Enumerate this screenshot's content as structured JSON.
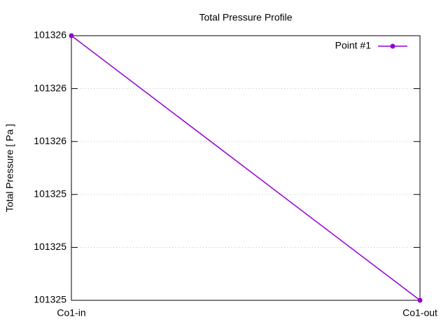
{
  "chart_data": {
    "type": "line",
    "title": "Total Pressure Profile",
    "ylabel": "Total Pressure [ Pa ]",
    "categories": [
      "Co1-in",
      "Co1-out"
    ],
    "series": [
      {
        "name": "Point #1",
        "color": "#9400d3",
        "values": [
          101326.0,
          101325.0
        ]
      }
    ],
    "ylim": [
      101325.0,
      101326.0
    ],
    "yticks": [
      {
        "value": 101325.0,
        "label": "101325"
      },
      {
        "value": 101325.2,
        "label": "101325"
      },
      {
        "value": 101325.4,
        "label": "101325"
      },
      {
        "value": 101325.6,
        "label": "101326"
      },
      {
        "value": 101325.8,
        "label": "101326"
      },
      {
        "value": 101326.0,
        "label": "101326"
      }
    ],
    "grid": true,
    "legend": "top-right"
  }
}
